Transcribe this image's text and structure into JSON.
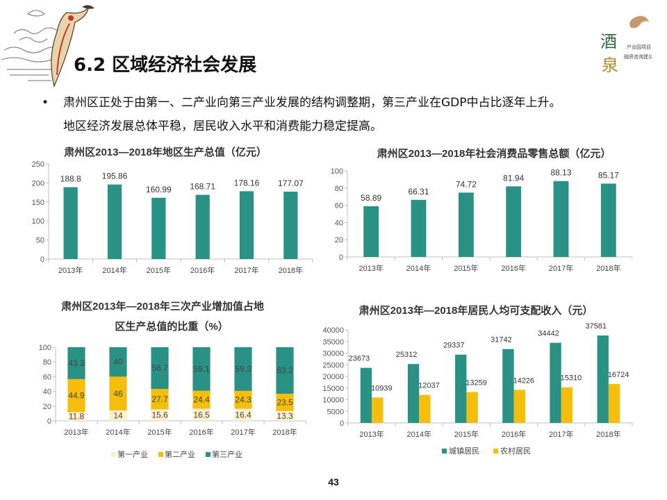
{
  "header": {
    "title": "6.2 区域经济社会发展",
    "logo_text": "酒泉 产业园项目 融资咨询建议书"
  },
  "bullet": {
    "lines": [
      "肃州区正处于由第一、二产业向第三产业发展的结构调整期，第三产业在GDP中占比逐年上升。",
      "地区经济发展总体平稳，居民收入水平和消费能力稳定提高。"
    ]
  },
  "colors": {
    "teal": "#2A9284",
    "gold": "#F5BE0C",
    "cream": "#FCF0CC"
  },
  "page_number": "43",
  "chart_data": [
    {
      "type": "bar",
      "title": "肃州区2013—2018年地区生产总值（亿元）",
      "categories": [
        "2013年",
        "2014年",
        "2015年",
        "2016年",
        "2017年",
        "2018年"
      ],
      "values": [
        188.8,
        195.86,
        160.99,
        168.71,
        178.16,
        177.07
      ],
      "ylim": [
        0,
        250
      ],
      "yticks": [
        0,
        50,
        100,
        150,
        200,
        250
      ],
      "grid": false
    },
    {
      "type": "bar",
      "title": "肃州区2013—2018年社会消费品零售总额（亿元）",
      "categories": [
        "2013年",
        "2014年",
        "2015年",
        "2016年",
        "2017年",
        "2018年"
      ],
      "values": [
        58.89,
        66.31,
        74.72,
        81.94,
        88.13,
        85.17
      ],
      "ylim": [
        0,
        100
      ],
      "yticks": [
        0,
        20,
        40,
        60,
        80,
        100
      ],
      "grid": false
    },
    {
      "type": "bar",
      "stacked": true,
      "title_lines": [
        "肃州区2013年—2018年三次产业增加值占地",
        "区生产总值的比重（%）"
      ],
      "categories": [
        "2013年",
        "2014年",
        "2015年",
        "2016年",
        "2017年",
        "2018年"
      ],
      "series": [
        {
          "name": "第一产业",
          "values": [
            11.8,
            14,
            15.6,
            16.5,
            16.4,
            13.3
          ]
        },
        {
          "name": "第二产业",
          "values": [
            44.9,
            46,
            27.7,
            24.4,
            24.3,
            23.5
          ]
        },
        {
          "name": "第三产业",
          "values": [
            43.3,
            40,
            56.7,
            59.1,
            59.3,
            63.2
          ]
        }
      ],
      "ylim": [
        0,
        100
      ],
      "yticks": [
        0,
        20,
        40,
        60,
        80,
        100
      ],
      "legend": "bottom",
      "grid": false
    },
    {
      "type": "bar",
      "title": "肃州区2013年—2018年居民人均可支配收入（元）",
      "categories": [
        "2013年",
        "2014年",
        "2015年",
        "2016年",
        "2017年",
        "2018年"
      ],
      "series": [
        {
          "name": "城镇居民",
          "values": [
            23673,
            25312,
            29337,
            31742,
            34442,
            37581
          ]
        },
        {
          "name": "农村居民",
          "values": [
            10939,
            12037,
            13259,
            14226,
            15310,
            16724
          ]
        }
      ],
      "ylim": [
        0,
        40000
      ],
      "yticks": [
        0,
        5000,
        10000,
        15000,
        20000,
        25000,
        30000,
        35000,
        40000
      ],
      "legend": "bottom",
      "grid": false
    }
  ]
}
